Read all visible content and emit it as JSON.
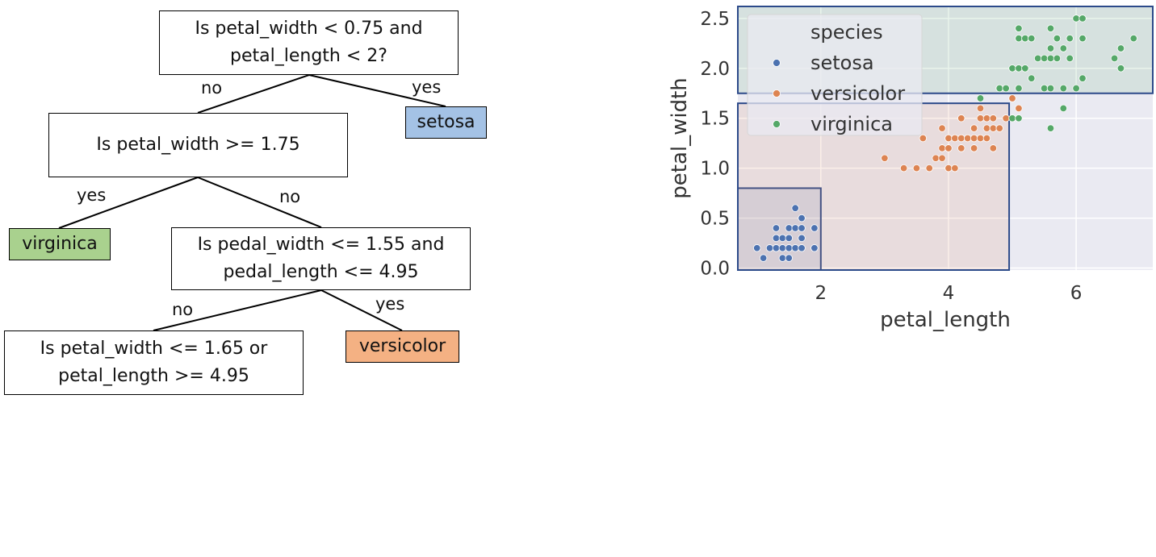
{
  "tree": {
    "root": {
      "text": "Is petal_width < 0.75 and petal_length < 2?",
      "line1": "Is petal_width < 0.75 and",
      "line2": "petal_length < 2?"
    },
    "root_no": "no",
    "root_yes": "yes",
    "leaf_setosa": {
      "label": "setosa",
      "color": "#a4c2e5"
    },
    "node2": {
      "text": "Is petal_width >= 1.75"
    },
    "node2_yes": "yes",
    "node2_no": "no",
    "leaf_virginica": {
      "label": "virginica",
      "color": "#a9d18e"
    },
    "node3": {
      "line1": "Is pedal_width <= 1.55 and",
      "line2": "pedal_length <= 4.95"
    },
    "node3_no": "no",
    "node3_yes": "yes",
    "leaf_versicolor": {
      "label": "versicolor",
      "color": "#f4b183"
    },
    "node4": {
      "line1": "Is petal_width <= 1.65 or",
      "line2": "petal_length >= 4.95"
    }
  },
  "chart_data": {
    "type": "scatter",
    "xlabel": "petal_length",
    "ylabel": "petal_width",
    "xlim": [
      0.7,
      7.2
    ],
    "ylim": [
      -0.02,
      2.62
    ],
    "xticks": [
      2,
      4,
      6
    ],
    "yticks": [
      0.0,
      0.5,
      1.0,
      1.5,
      2.0,
      2.5
    ],
    "grid": true,
    "background": "#eaeaf2",
    "legend": {
      "title": "species",
      "placement": "top-left"
    },
    "series": [
      {
        "name": "setosa",
        "color": "#4c72b0",
        "points": [
          [
            1.0,
            0.2
          ],
          [
            1.1,
            0.1
          ],
          [
            1.2,
            0.2
          ],
          [
            1.3,
            0.2
          ],
          [
            1.3,
            0.3
          ],
          [
            1.3,
            0.4
          ],
          [
            1.4,
            0.1
          ],
          [
            1.4,
            0.2
          ],
          [
            1.4,
            0.3
          ],
          [
            1.5,
            0.1
          ],
          [
            1.5,
            0.2
          ],
          [
            1.5,
            0.3
          ],
          [
            1.5,
            0.4
          ],
          [
            1.6,
            0.2
          ],
          [
            1.6,
            0.4
          ],
          [
            1.6,
            0.6
          ],
          [
            1.7,
            0.2
          ],
          [
            1.7,
            0.3
          ],
          [
            1.7,
            0.4
          ],
          [
            1.7,
            0.5
          ],
          [
            1.9,
            0.2
          ],
          [
            1.9,
            0.4
          ]
        ]
      },
      {
        "name": "versicolor",
        "color": "#dd8452",
        "points": [
          [
            3.0,
            1.1
          ],
          [
            3.3,
            1.0
          ],
          [
            3.5,
            1.0
          ],
          [
            3.6,
            1.3
          ],
          [
            3.7,
            1.0
          ],
          [
            3.8,
            1.1
          ],
          [
            3.9,
            1.1
          ],
          [
            3.9,
            1.2
          ],
          [
            3.9,
            1.4
          ],
          [
            4.0,
            1.0
          ],
          [
            4.0,
            1.2
          ],
          [
            4.0,
            1.3
          ],
          [
            4.1,
            1.0
          ],
          [
            4.1,
            1.3
          ],
          [
            4.2,
            1.2
          ],
          [
            4.2,
            1.3
          ],
          [
            4.2,
            1.5
          ],
          [
            4.3,
            1.3
          ],
          [
            4.4,
            1.2
          ],
          [
            4.4,
            1.3
          ],
          [
            4.4,
            1.4
          ],
          [
            4.5,
            1.3
          ],
          [
            4.5,
            1.5
          ],
          [
            4.5,
            1.6
          ],
          [
            4.6,
            1.3
          ],
          [
            4.6,
            1.4
          ],
          [
            4.6,
            1.5
          ],
          [
            4.7,
            1.2
          ],
          [
            4.7,
            1.4
          ],
          [
            4.7,
            1.5
          ],
          [
            4.8,
            1.4
          ],
          [
            4.8,
            1.8
          ],
          [
            4.9,
            1.5
          ],
          [
            5.0,
            1.7
          ],
          [
            5.1,
            1.6
          ]
        ]
      },
      {
        "name": "virginica",
        "color": "#55a868",
        "points": [
          [
            4.5,
            1.7
          ],
          [
            4.8,
            1.8
          ],
          [
            4.9,
            1.8
          ],
          [
            5.0,
            1.5
          ],
          [
            5.0,
            2.0
          ],
          [
            5.1,
            1.5
          ],
          [
            5.1,
            1.8
          ],
          [
            5.1,
            2.0
          ],
          [
            5.1,
            2.3
          ],
          [
            5.1,
            2.4
          ],
          [
            5.2,
            2.0
          ],
          [
            5.2,
            2.3
          ],
          [
            5.3,
            1.9
          ],
          [
            5.3,
            2.3
          ],
          [
            5.4,
            2.1
          ],
          [
            5.5,
            1.8
          ],
          [
            5.5,
            2.1
          ],
          [
            5.6,
            1.4
          ],
          [
            5.6,
            1.8
          ],
          [
            5.6,
            2.1
          ],
          [
            5.6,
            2.2
          ],
          [
            5.6,
            2.4
          ],
          [
            5.7,
            2.1
          ],
          [
            5.7,
            2.3
          ],
          [
            5.8,
            1.6
          ],
          [
            5.8,
            1.8
          ],
          [
            5.8,
            2.2
          ],
          [
            5.9,
            2.1
          ],
          [
            5.9,
            2.3
          ],
          [
            6.0,
            1.8
          ],
          [
            6.0,
            2.5
          ],
          [
            6.1,
            1.9
          ],
          [
            6.1,
            2.3
          ],
          [
            6.1,
            2.5
          ],
          [
            6.6,
            2.1
          ],
          [
            6.7,
            2.0
          ],
          [
            6.7,
            2.2
          ],
          [
            6.9,
            2.3
          ]
        ]
      }
    ],
    "regions": [
      {
        "name": "setosa-region",
        "x": [
          0.7,
          2.0
        ],
        "y": [
          -0.02,
          0.8
        ],
        "fill": "#4c72b0"
      },
      {
        "name": "versicolor-region",
        "x": [
          0.7,
          4.95
        ],
        "y": [
          -0.02,
          1.65
        ],
        "fill": "#dd8452"
      },
      {
        "name": "virginica-region",
        "x": [
          0.7,
          7.2
        ],
        "y": [
          1.75,
          2.62
        ],
        "fill": "#55a868"
      }
    ],
    "region_stroke": "#2c4a8a"
  }
}
